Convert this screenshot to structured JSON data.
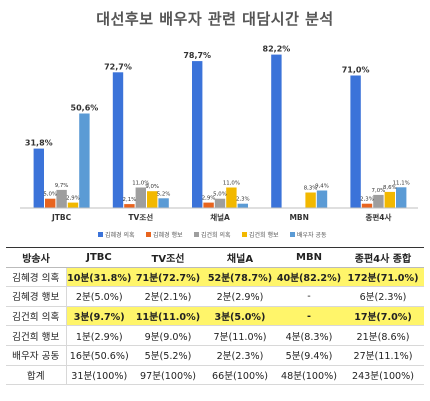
{
  "chart_data": {
    "type": "bar",
    "title": "대선후보 배우자 관련 대담시간 분석",
    "categories": [
      "JTBC",
      "TV조선",
      "채널A",
      "MBN",
      "종편4사"
    ],
    "series": [
      {
        "name": "김혜경 의혹",
        "color": "#3b73d9",
        "values": [
          31.8,
          72.7,
          78.7,
          82.2,
          71.0
        ],
        "labels": [
          "31,8%",
          "72,7%",
          "78,7%",
          "82,2%",
          "71,0%"
        ]
      },
      {
        "name": "김혜경 행보",
        "color": "#e8641f",
        "values": [
          5.0,
          2.1,
          2.9,
          0,
          2.3
        ],
        "labels": [
          "5,0%",
          "2,1%",
          "2,9%",
          "",
          "2,3%"
        ]
      },
      {
        "name": "김건희 의혹",
        "color": "#9e9e9e",
        "values": [
          9.7,
          11.0,
          5.0,
          0,
          7.0
        ],
        "labels": [
          "9,7%",
          "11,0%",
          "5,0%",
          "",
          "7,0%"
        ]
      },
      {
        "name": "김건희 행보",
        "color": "#f2b800",
        "values": [
          2.9,
          9.0,
          11.0,
          8.3,
          8.6
        ],
        "labels": [
          "2,9%",
          "9,0%",
          "11,0%",
          "8,3%",
          "8,6%"
        ]
      },
      {
        "name": "배우자 공동",
        "color": "#5b9bd5",
        "values": [
          50.6,
          5.2,
          2.3,
          9.4,
          11.1
        ],
        "labels": [
          "50,6%",
          "5,2%",
          "2,3%",
          "9,4%",
          "11,1%"
        ]
      }
    ],
    "ylim": [
      0,
      90
    ],
    "legend": "bottom"
  },
  "table": {
    "headers": [
      "방송사",
      "JTBC",
      "TV조선",
      "채널A",
      "MBN",
      "종편4사 종합"
    ],
    "rows": [
      {
        "label": "김혜경 의혹",
        "cells": [
          "10분(31.8%)",
          "71분(72.7%)",
          "52분(78.7%)",
          "40분(82.2%)",
          "172분(71.0%)"
        ],
        "highlight": true
      },
      {
        "label": "김혜경 행보",
        "cells": [
          "2분(5.0%)",
          "2분(2.1%)",
          "2분(2.9%)",
          "-",
          "6분(2.3%)"
        ],
        "highlight": false
      },
      {
        "label": "김건희 의혹",
        "cells": [
          "3분(9.7%)",
          "11분(11.0%)",
          "3분(5.0%)",
          "-",
          "17분(7.0%)"
        ],
        "highlight": true
      },
      {
        "label": "김건희 행보",
        "cells": [
          "1분(2.9%)",
          "9분(9.0%)",
          "7분(11.0%)",
          "4분(8.3%)",
          "21분(8.6%)"
        ],
        "highlight": false
      },
      {
        "label": "배우자 공동",
        "cells": [
          "16분(50.6%)",
          "5분(5.2%)",
          "2분(2.3%)",
          "5분(9.4%)",
          "27분(11.1%)"
        ],
        "highlight": false
      },
      {
        "label": "합계",
        "cells": [
          "31분(100%)",
          "97분(100%)",
          "66분(100%)",
          "48분(100%)",
          "243분(100%)"
        ],
        "highlight": false
      }
    ]
  }
}
